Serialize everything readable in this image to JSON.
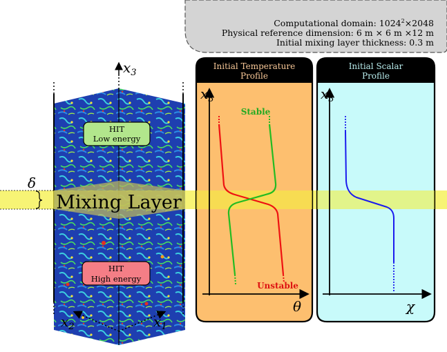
{
  "info_box": {
    "line1_prefix": "Computational domain: 1024",
    "line1_sup": "2",
    "line1_suffix": "×2048",
    "line2": "Physical reference dimension: 6 m × 6 m ×12 m",
    "line3": "Initial mixing layer thickness: 0.3 m"
  },
  "domain_panel": {
    "axis_x3": "x",
    "axis_x3_sub": "3",
    "axis_x1": "x",
    "axis_x1_sub": "1",
    "axis_x2": "x",
    "axis_x2_sub": "2",
    "delta": "δ",
    "mixing_layer": "Mixing Layer",
    "hit_low_line1": "HIT",
    "hit_low_line2": "Low energy",
    "hit_high_line1": "HIT",
    "hit_high_line2": "High energy"
  },
  "temperature_panel": {
    "title_line1": "Initial Temperature",
    "title_line2": "Profile",
    "axis_y": "x",
    "axis_y_sub": "3",
    "axis_x": "θ",
    "stable_label": "Stable",
    "unstable_label": "Unstable"
  },
  "scalar_panel": {
    "title_line1": "Initial Scalar",
    "title_line2": "Profile",
    "axis_y": "x",
    "axis_y_sub": "3",
    "axis_x": "χ"
  },
  "colors": {
    "temperature_panel_bg": "#fdbf6f",
    "scalar_panel_bg": "#c8fafa",
    "panel_header_bg": "#000000",
    "temperature_title": "#f8c898",
    "scalar_title": "#b8ecec",
    "mixing_band": "#f4f040",
    "hit_low_bg": "#b2e68c",
    "hit_high_bg": "#f47e86",
    "stable_curve": "#22bb22",
    "unstable_curve": "#ee1111",
    "scalar_curve": "#1a1aee",
    "info_box_bg": "#d4d4d4"
  }
}
